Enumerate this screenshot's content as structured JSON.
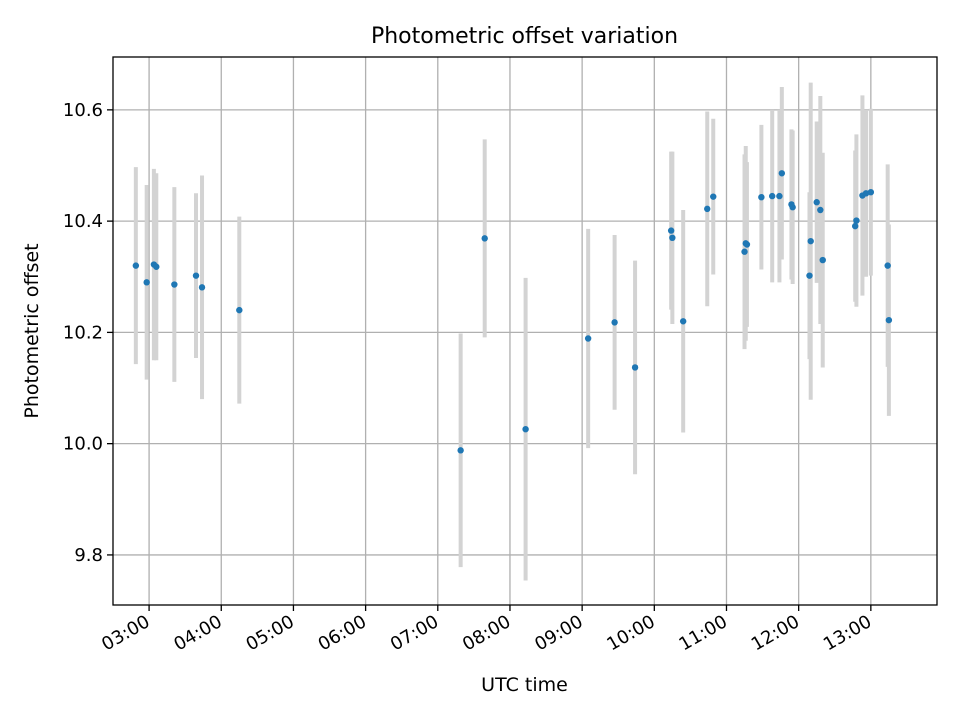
{
  "chart_data": {
    "type": "scatter",
    "title": "Photometric offset variation",
    "xlabel": "UTC time",
    "ylabel": "Photometric offset",
    "xlim": [
      "02:30",
      "13:55"
    ],
    "ylim": [
      9.71,
      10.695
    ],
    "grid": true,
    "x_ticks": [
      "03:00",
      "04:00",
      "05:00",
      "06:00",
      "07:00",
      "08:00",
      "09:00",
      "10:00",
      "11:00",
      "12:00",
      "13:00"
    ],
    "y_ticks": [
      "9.8",
      "10.0",
      "10.2",
      "10.4",
      "10.6"
    ],
    "colors": {
      "point": "#1f77b4",
      "error_bar": "#d3d3d3",
      "grid": "#b0b0b0"
    },
    "points": [
      {
        "x": "02:49",
        "y": 10.32,
        "err": 0.177
      },
      {
        "x": "02:58",
        "y": 10.29,
        "err": 0.175
      },
      {
        "x": "03:04",
        "y": 10.322,
        "err": 0.172
      },
      {
        "x": "03:06",
        "y": 10.318,
        "err": 0.168
      },
      {
        "x": "03:21",
        "y": 10.286,
        "err": 0.175
      },
      {
        "x": "03:39",
        "y": 10.302,
        "err": 0.148
      },
      {
        "x": "03:44",
        "y": 10.281,
        "err": 0.201
      },
      {
        "x": "04:15",
        "y": 10.24,
        "err": 0.168
      },
      {
        "x": "07:19",
        "y": 9.988,
        "err": 0.21
      },
      {
        "x": "07:39",
        "y": 10.369,
        "err": 0.178
      },
      {
        "x": "08:13",
        "y": 10.026,
        "err": 0.272
      },
      {
        "x": "09:05",
        "y": 10.189,
        "err": 0.197
      },
      {
        "x": "09:27",
        "y": 10.218,
        "err": 0.157
      },
      {
        "x": "09:44",
        "y": 10.137,
        "err": 0.192
      },
      {
        "x": "10:14",
        "y": 10.383,
        "err": 0.142
      },
      {
        "x": "10:15",
        "y": 10.37,
        "err": 0.155
      },
      {
        "x": "10:24",
        "y": 10.22,
        "err": 0.2
      },
      {
        "x": "10:44",
        "y": 10.422,
        "err": 0.175
      },
      {
        "x": "10:49",
        "y": 10.444,
        "err": 0.14
      },
      {
        "x": "11:15",
        "y": 10.345,
        "err": 0.175
      },
      {
        "x": "11:16",
        "y": 10.36,
        "err": 0.175
      },
      {
        "x": "11:17",
        "y": 10.358,
        "err": 0.148
      },
      {
        "x": "11:29",
        "y": 10.443,
        "err": 0.13
      },
      {
        "x": "11:38",
        "y": 10.445,
        "err": 0.155
      },
      {
        "x": "11:44",
        "y": 10.445,
        "err": 0.155
      },
      {
        "x": "11:46",
        "y": 10.486,
        "err": 0.155
      },
      {
        "x": "11:54",
        "y": 10.43,
        "err": 0.135
      },
      {
        "x": "11:55",
        "y": 10.425,
        "err": 0.138
      },
      {
        "x": "12:09",
        "y": 10.302,
        "err": 0.15
      },
      {
        "x": "12:10",
        "y": 10.364,
        "err": 0.285
      },
      {
        "x": "12:15",
        "y": 10.434,
        "err": 0.145
      },
      {
        "x": "12:18",
        "y": 10.42,
        "err": 0.205
      },
      {
        "x": "12:20",
        "y": 10.33,
        "err": 0.193
      },
      {
        "x": "12:47",
        "y": 10.391,
        "err": 0.136
      },
      {
        "x": "12:48",
        "y": 10.401,
        "err": 0.155
      },
      {
        "x": "12:53",
        "y": 10.446,
        "err": 0.18
      },
      {
        "x": "12:56",
        "y": 10.45,
        "err": 0.15
      },
      {
        "x": "13:00",
        "y": 10.452,
        "err": 0.15
      },
      {
        "x": "13:14",
        "y": 10.32,
        "err": 0.182
      },
      {
        "x": "13:15",
        "y": 10.222,
        "err": 0.172
      }
    ]
  }
}
